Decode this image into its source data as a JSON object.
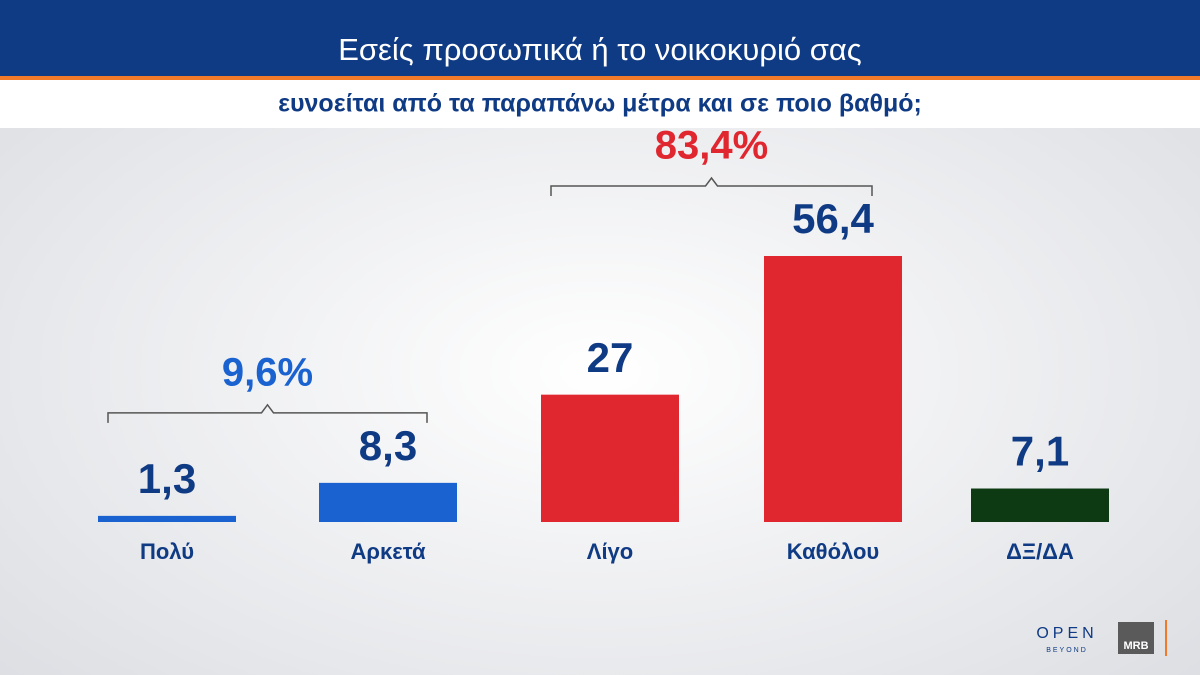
{
  "chart_data": {
    "type": "bar",
    "title": "Εσείς προσωπικά ή το νοικοκυριό σας",
    "subtitle": "ευνοείται από τα παραπάνω μέτρα και σε ποιο βαθμό;",
    "categories": [
      "Πολύ",
      "Αρκετά",
      "Λίγο",
      "Καθόλου",
      "ΔΞ/ΔΑ"
    ],
    "values": [
      1.3,
      8.3,
      27,
      56.4,
      7.1
    ],
    "value_labels": [
      "1,3",
      "8,3",
      "27",
      "56,4",
      "7,1"
    ],
    "colors": [
      "#1a62d0",
      "#1a62d0",
      "#e0262f",
      "#e0262f",
      "#0d3a12"
    ],
    "annotations": [
      {
        "text": "9,6%",
        "spans": [
          "Πολύ",
          "Αρκετά"
        ],
        "color": "#1a62d0"
      },
      {
        "text": "83,4%",
        "spans": [
          "Λίγο",
          "Καθόλου"
        ],
        "color": "#e0262f"
      }
    ]
  },
  "logos": {
    "open": "OPEN",
    "beyond": "BEYOND",
    "mrb": "MRB"
  }
}
